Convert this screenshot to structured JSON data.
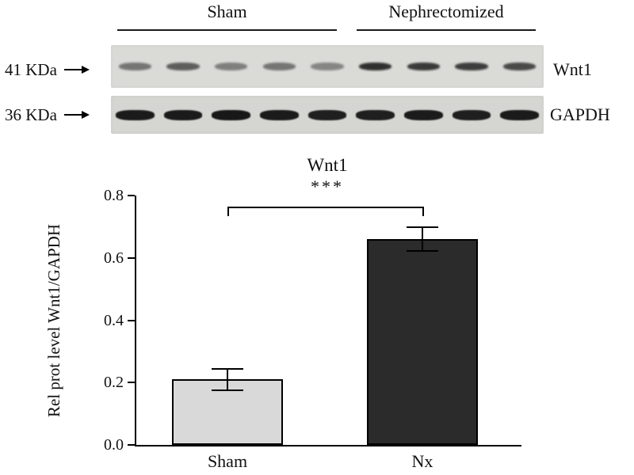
{
  "blot": {
    "groups": [
      {
        "label": "Sham",
        "lanes": 5
      },
      {
        "label": "Nephrectomized",
        "lanes": 4
      }
    ],
    "rows": [
      {
        "weight_label": "41 KDa",
        "protein": "Wnt1",
        "band_intensities": [
          0.5,
          0.62,
          0.45,
          0.5,
          0.42,
          0.85,
          0.8,
          0.78,
          0.72
        ]
      },
      {
        "weight_label": "36 KDa",
        "protein": "GAPDH",
        "band_intensities": [
          0.95,
          0.95,
          0.97,
          0.95,
          0.93,
          0.93,
          0.95,
          0.93,
          0.95
        ]
      }
    ]
  },
  "chart_data": {
    "type": "bar",
    "title": "Wnt1",
    "significance": "***",
    "categories": [
      "Sham",
      "Nx"
    ],
    "values": [
      0.21,
      0.66
    ],
    "errors": [
      0.035,
      0.038
    ],
    "xlabel": "",
    "ylabel": "Rel prot level Wnt1/GAPDH",
    "yticks": [
      0.0,
      0.2,
      0.4,
      0.6,
      0.8
    ],
    "ylim": [
      0,
      0.8
    ],
    "grid": false,
    "legend": false,
    "bar_colors": [
      "#d9d9d9",
      "#2b2b2b"
    ]
  }
}
